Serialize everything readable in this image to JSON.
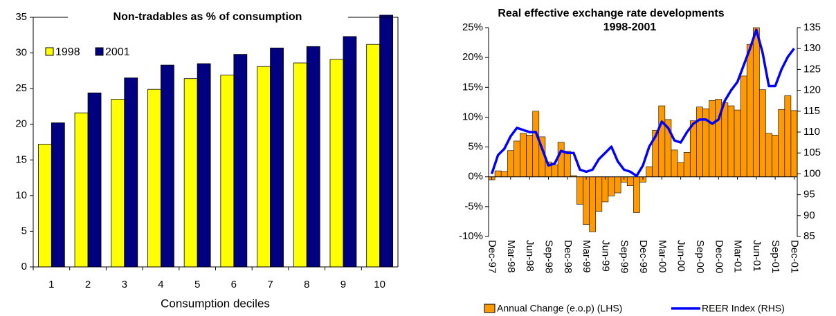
{
  "chart_data": [
    {
      "type": "bar",
      "title": "Non-tradables as % of consumption",
      "x_label": "Consumption deciles",
      "categories": [
        "1",
        "2",
        "3",
        "4",
        "5",
        "6",
        "7",
        "8",
        "9",
        "10"
      ],
      "series": [
        {
          "name": "1998",
          "color": "#FFFF00",
          "values": [
            17.2,
            21.6,
            23.5,
            24.9,
            26.4,
            26.9,
            28.1,
            28.6,
            29.1,
            31.2
          ]
        },
        {
          "name": "2001",
          "color": "#000080",
          "values": [
            20.2,
            24.4,
            26.5,
            28.3,
            28.5,
            29.8,
            30.7,
            30.9,
            32.3,
            35.3
          ]
        }
      ],
      "ylim": [
        0,
        35
      ],
      "yticks": [
        0,
        5,
        10,
        15,
        20,
        25,
        30,
        35
      ],
      "grid": false,
      "legend": "upper-left"
    },
    {
      "type": "combo",
      "title": "Real effective exchange rate developments",
      "subtitle": "1998-2001",
      "categories": [
        "Dec-97",
        null,
        null,
        "Mar-98",
        null,
        null,
        "Jun-98",
        null,
        null,
        "Sep-98",
        null,
        null,
        "Dec-98",
        null,
        null,
        "Mar-99",
        null,
        null,
        "Jun-99",
        null,
        null,
        "Sep-99",
        null,
        null,
        "Dec-99",
        null,
        null,
        "Mar-00",
        null,
        null,
        "Jun-00",
        null,
        null,
        "Sep-00",
        null,
        null,
        "Dec-00",
        null,
        null,
        "Mar-01",
        null,
        null,
        "Jun-01",
        null,
        null,
        "Sep-01",
        null,
        null,
        "Dec-01"
      ],
      "series": [
        {
          "name": "Annual Change (e.o.p) (LHS)",
          "type": "bar",
          "color": "#FF9900",
          "values": [
            -0.5,
            1.0,
            0.9,
            4.4,
            6.0,
            7.3,
            7.0,
            11.0,
            6.7,
            2.5,
            2.0,
            5.8,
            4.3,
            0.2,
            -4.6,
            -8.0,
            -9.2,
            -5.8,
            -4.2,
            -3.2,
            -2.7,
            -0.9,
            -1.5,
            -6.0,
            -0.9,
            1.7,
            7.8,
            11.9,
            9.6,
            4.5,
            2.4,
            4.1,
            9.4,
            11.7,
            11.4,
            12.8,
            13.0,
            12.4,
            11.9,
            11.2,
            16.9,
            22.2,
            25.0,
            14.6,
            7.3,
            7.0,
            11.3,
            13.6,
            11.1
          ]
        },
        {
          "name": "REER Index (RHS)",
          "type": "line",
          "axis": "y2",
          "color": "#0000FF",
          "values": [
            100,
            104.5,
            106,
            109,
            111,
            110.5,
            110,
            110,
            106,
            102,
            102.5,
            105.5,
            105,
            105,
            101,
            100.5,
            101,
            103.5,
            105,
            106.5,
            103,
            101,
            100.5,
            99.5,
            102,
            106.5,
            109,
            112.5,
            111,
            108,
            107.5,
            110,
            112,
            113,
            113,
            112,
            113,
            117.5,
            120,
            122,
            126,
            130,
            134.5,
            129,
            121,
            121,
            125,
            128,
            130
          ]
        }
      ],
      "ylim": [
        -10,
        25
      ],
      "yticks": [
        {
          "value": -10,
          "label": "-10%"
        },
        {
          "value": -5,
          "label": "-5%"
        },
        {
          "value": 0,
          "label": "0%"
        },
        {
          "value": 5,
          "label": "5%"
        },
        {
          "value": 10,
          "label": "10%"
        },
        {
          "value": 15,
          "label": "15%"
        },
        {
          "value": 20,
          "label": "20%"
        },
        {
          "value": 25,
          "label": "25%"
        }
      ],
      "y2lim": [
        85,
        135
      ],
      "y2ticks": [
        85,
        90,
        95,
        100,
        105,
        110,
        115,
        120,
        125,
        130,
        135
      ],
      "legend": "bottom"
    }
  ]
}
